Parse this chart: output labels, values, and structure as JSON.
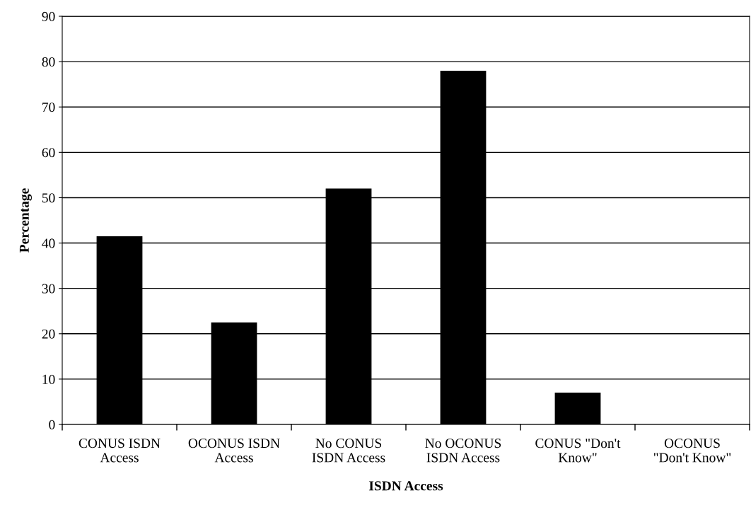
{
  "chart_data": {
    "type": "bar",
    "xlabel": "ISDN Access",
    "ylabel": "Percentage",
    "categories": [
      "CONUS ISDN\nAccess",
      "OCONUS ISDN\nAccess",
      "No CONUS\nISDN Access",
      "No OCONUS\nISDN Access",
      "CONUS \"Don't\nKnow\"",
      "OCONUS\n\"Don't Know\""
    ],
    "values": [
      41.5,
      22.5,
      52,
      78,
      7,
      0
    ],
    "color": "#000000",
    "ylim": [
      0,
      90
    ],
    "yticks": [
      0,
      10,
      20,
      30,
      40,
      50,
      60,
      70,
      80,
      90
    ],
    "grid": "y"
  }
}
